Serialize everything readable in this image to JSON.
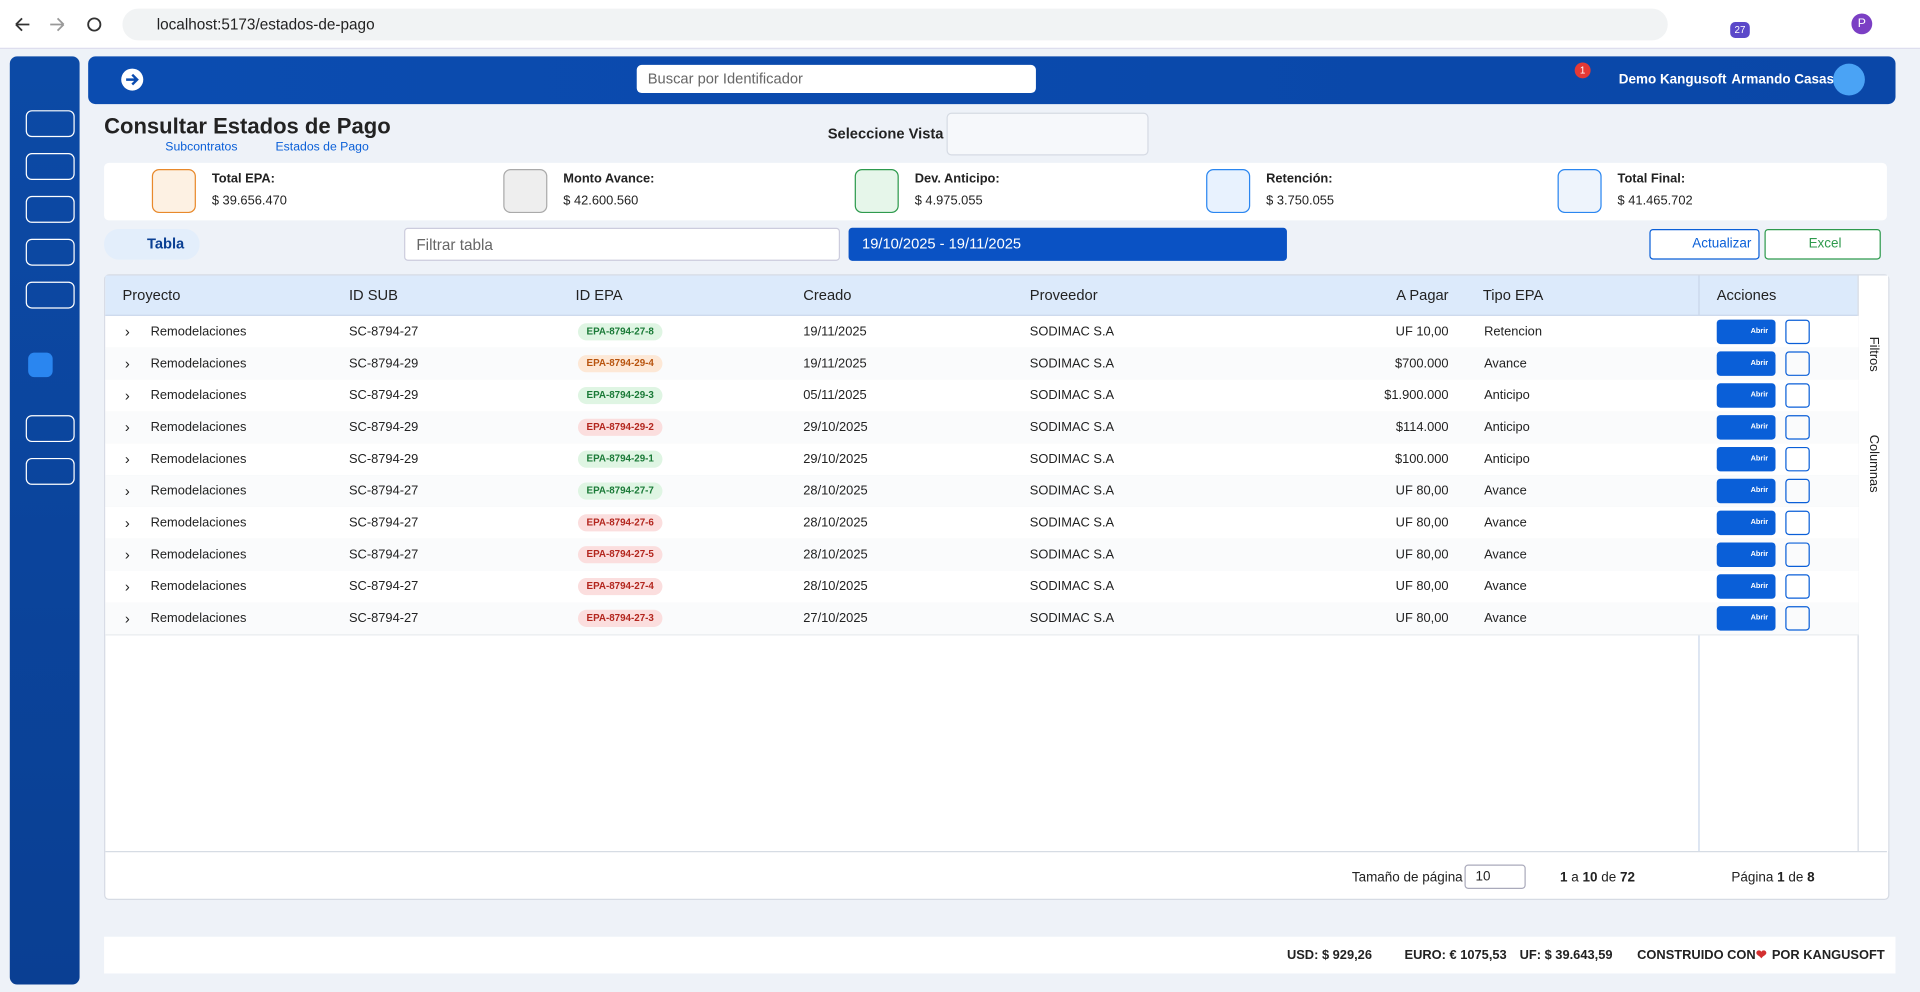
{
  "browser": {
    "url": "localhost:5173/estados-de-pago",
    "ext_badge": "27",
    "profile": "P"
  },
  "header": {
    "search_placeholder": "Buscar por Identificador",
    "notifications": "1",
    "company": "Demo Kangusoft",
    "user": "Armando Casas"
  },
  "page": {
    "title": "Consultar Estados de Pago",
    "breadcrumb": [
      "Subcontratos",
      "Estados de Pago"
    ],
    "view_label": "Seleccione Vista"
  },
  "summary": [
    {
      "label": "Total EPA:",
      "value": "$ 39.656.470"
    },
    {
      "label": "Monto Avance:",
      "value": "$ 42.600.560"
    },
    {
      "label": "Dev. Anticipo:",
      "value": "$ 4.975.055"
    },
    {
      "label": "Retención:",
      "value": "$ 3.750.055"
    },
    {
      "label": "Total Final:",
      "value": "$ 41.465.702"
    }
  ],
  "toolbar": {
    "tab": "Tabla",
    "filter_placeholder": "Filtrar tabla",
    "date_range": "19/10/2025 - 19/11/2025",
    "refresh": "Actualizar",
    "excel": "Excel"
  },
  "table": {
    "columns": [
      "Proyecto",
      "ID SUB",
      "ID EPA",
      "Creado",
      "Proveedor",
      "A Pagar",
      "Tipo EPA",
      "Acciones"
    ],
    "open": "Abrir",
    "rows": [
      {
        "project": "Remodelaciones",
        "id_sub": "SC-8794-27",
        "id_epa": "EPA-8794-27-8",
        "status": "green",
        "created": "19/11/2025",
        "supplier": "SODIMAC S.A",
        "amount": "UF 10,00",
        "type": "Retencion"
      },
      {
        "project": "Remodelaciones",
        "id_sub": "SC-8794-29",
        "id_epa": "EPA-8794-29-4",
        "status": "orange",
        "created": "19/11/2025",
        "supplier": "SODIMAC S.A",
        "amount": "$700.000",
        "type": "Avance"
      },
      {
        "project": "Remodelaciones",
        "id_sub": "SC-8794-29",
        "id_epa": "EPA-8794-29-3",
        "status": "green",
        "created": "05/11/2025",
        "supplier": "SODIMAC S.A",
        "amount": "$1.900.000",
        "type": "Anticipo"
      },
      {
        "project": "Remodelaciones",
        "id_sub": "SC-8794-29",
        "id_epa": "EPA-8794-29-2",
        "status": "red",
        "created": "29/10/2025",
        "supplier": "SODIMAC S.A",
        "amount": "$114.000",
        "type": "Anticipo"
      },
      {
        "project": "Remodelaciones",
        "id_sub": "SC-8794-29",
        "id_epa": "EPA-8794-29-1",
        "status": "green",
        "created": "29/10/2025",
        "supplier": "SODIMAC S.A",
        "amount": "$100.000",
        "type": "Anticipo"
      },
      {
        "project": "Remodelaciones",
        "id_sub": "SC-8794-27",
        "id_epa": "EPA-8794-27-7",
        "status": "green",
        "created": "28/10/2025",
        "supplier": "SODIMAC S.A",
        "amount": "UF 80,00",
        "type": "Avance"
      },
      {
        "project": "Remodelaciones",
        "id_sub": "SC-8794-27",
        "id_epa": "EPA-8794-27-6",
        "status": "red",
        "created": "28/10/2025",
        "supplier": "SODIMAC S.A",
        "amount": "UF 80,00",
        "type": "Avance"
      },
      {
        "project": "Remodelaciones",
        "id_sub": "SC-8794-27",
        "id_epa": "EPA-8794-27-5",
        "status": "red",
        "created": "28/10/2025",
        "supplier": "SODIMAC S.A",
        "amount": "UF 80,00",
        "type": "Avance"
      },
      {
        "project": "Remodelaciones",
        "id_sub": "SC-8794-27",
        "id_epa": "EPA-8794-27-4",
        "status": "red",
        "created": "28/10/2025",
        "supplier": "SODIMAC S.A",
        "amount": "UF 80,00",
        "type": "Avance"
      },
      {
        "project": "Remodelaciones",
        "id_sub": "SC-8794-27",
        "id_epa": "EPA-8794-27-3",
        "status": "red",
        "created": "27/10/2025",
        "supplier": "SODIMAC S.A",
        "amount": "UF 80,00",
        "type": "Avance"
      }
    ]
  },
  "side_panel": [
    "Filtros",
    "Columnas"
  ],
  "pagination": {
    "page_size_label": "Tamaño de página",
    "page_size": 10,
    "from": 1,
    "to_word": "a",
    "to": 10,
    "of_word": "de",
    "total": 72,
    "page_word": "Página",
    "page": 1,
    "pages_word": "de",
    "pages": 8
  },
  "footer": {
    "usd": "USD: $ 929,26",
    "euro": "EURO: € 1075,53",
    "uf": "UF: $ 39.643,59",
    "built": "CONSTRUIDO CON",
    "by": "POR KANGUSOFT"
  }
}
